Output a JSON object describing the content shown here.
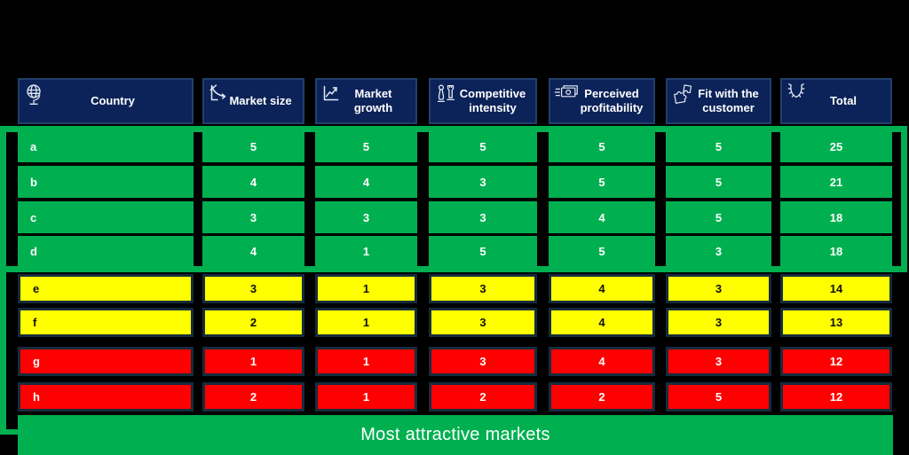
{
  "header": {
    "columns": [
      {
        "label": "Country",
        "icon": "globe-icon"
      },
      {
        "label": "Market size",
        "icon": "declining-curve-chart-icon"
      },
      {
        "label": "Market growth",
        "icon": "rising-chart-icon"
      },
      {
        "label": "Competitive intensity",
        "icon": "chess-pieces-icon"
      },
      {
        "label": "Perceived profitability",
        "icon": "banknotes-icon"
      },
      {
        "label": "Fit with the customer",
        "icon": "puzzle-pieces-icon"
      },
      {
        "label": "Total",
        "icon": "laurel-wreath-icon"
      }
    ]
  },
  "chart_data": {
    "type": "table",
    "columns": [
      "Country",
      "Market size",
      "Market growth",
      "Competitive intensity",
      "Perceived profitability",
      "Fit with the customer",
      "Total"
    ],
    "rows": [
      [
        "a",
        5,
        5,
        5,
        5,
        5,
        25
      ],
      [
        "b",
        4,
        4,
        3,
        5,
        5,
        21
      ],
      [
        "c",
        3,
        3,
        3,
        4,
        5,
        18
      ],
      [
        "d",
        4,
        1,
        5,
        5,
        3,
        18
      ],
      [
        "e",
        3,
        1,
        3,
        4,
        3,
        14
      ],
      [
        "f",
        2,
        1,
        3,
        4,
        3,
        13
      ],
      [
        "g",
        1,
        1,
        3,
        4,
        3,
        12
      ],
      [
        "h",
        2,
        1,
        2,
        2,
        5,
        12
      ]
    ],
    "row_tiers": [
      "green",
      "green",
      "green",
      "green",
      "yellow",
      "yellow",
      "red",
      "red"
    ],
    "footer": "Most attractive markets"
  },
  "footer": {
    "label": "Most attractive markets"
  },
  "colors": {
    "background": "#000000",
    "header_bg": "#0c2359",
    "tier_green": "#00b050",
    "tier_yellow": "#ffff00",
    "tier_red": "#fe0000",
    "cell_border": "#152c3c",
    "header_text": "#ffffff"
  }
}
